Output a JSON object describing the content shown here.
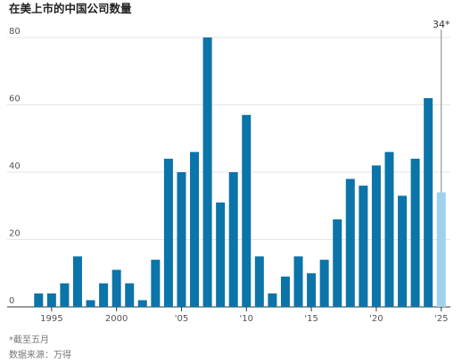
{
  "chart_data": {
    "type": "bar",
    "title": "在美上市的中国公司数量",
    "categories": [
      null,
      "1995",
      null,
      null,
      null,
      null,
      "2000",
      null,
      null,
      null,
      null,
      "'05",
      null,
      null,
      null,
      null,
      "'10",
      null,
      null,
      null,
      null,
      "'15",
      null,
      null,
      null,
      null,
      "'20",
      null,
      null,
      null,
      null,
      "'25"
    ],
    "values": [
      4,
      4,
      7,
      15,
      2,
      7,
      11,
      7,
      2,
      14,
      44,
      40,
      46,
      80,
      31,
      40,
      57,
      15,
      4,
      9,
      15,
      10,
      14,
      26,
      38,
      36,
      42,
      46,
      33,
      44,
      62,
      34
    ],
    "value_labels": [
      null,
      null,
      null,
      null,
      null,
      null,
      null,
      null,
      null,
      null,
      null,
      null,
      null,
      null,
      null,
      null,
      null,
      null,
      null,
      null,
      null,
      null,
      null,
      null,
      null,
      null,
      null,
      null,
      null,
      null,
      null,
      "34*"
    ],
    "color": "#0b74a8",
    "colors": [
      "#0b74a8",
      "#0b74a8",
      "#0b74a8",
      "#0b74a8",
      "#0b74a8",
      "#0b74a8",
      "#0b74a8",
      "#0b74a8",
      "#0b74a8",
      "#0b74a8",
      "#0b74a8",
      "#0b74a8",
      "#0b74a8",
      "#0b74a8",
      "#0b74a8",
      "#0b74a8",
      "#0b74a8",
      "#0b74a8",
      "#0b74a8",
      "#0b74a8",
      "#0b74a8",
      "#0b74a8",
      "#0b74a8",
      "#0b74a8",
      "#0b74a8",
      "#0b74a8",
      "#0b74a8",
      "#0b74a8",
      "#0b74a8",
      "#0b74a8",
      "#0b74a8",
      "#9fd0ee"
    ],
    "ylim": [
      0,
      80
    ],
    "yticks": [
      0,
      20,
      40,
      60,
      80
    ],
    "grid": true,
    "notes": [
      "*截至五月",
      "数据来源：万得"
    ]
  }
}
